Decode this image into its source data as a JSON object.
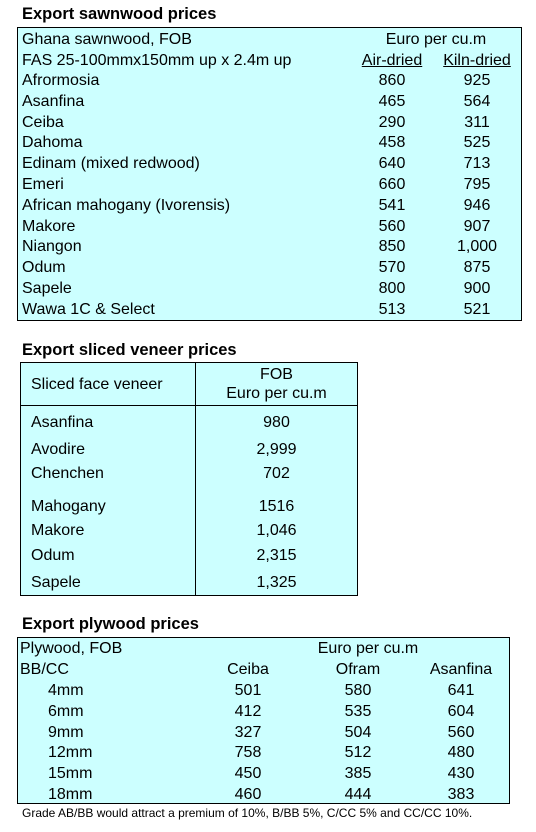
{
  "sawnwood": {
    "title": "Export sawnwood prices",
    "header1": "Ghana sawnwood, FOB",
    "currency": "Euro per cu.m",
    "header2": "FAS 25-100mmx150mm up x 2.4m up",
    "col_air": "Air-dried",
    "col_kiln": "Kiln-dried",
    "rows": [
      {
        "name": "Afrormosia",
        "air": "860",
        "kiln": "925"
      },
      {
        "name": "Asanfina",
        "air": "465",
        "kiln": "564"
      },
      {
        "name": "Ceiba",
        "air": "290",
        "kiln": "311"
      },
      {
        "name": "Dahoma",
        "air": "458",
        "kiln": "525"
      },
      {
        "name": "Edinam (mixed redwood)",
        "air": "640",
        "kiln": "713"
      },
      {
        "name": "Emeri",
        "air": "660",
        "kiln": "795"
      },
      {
        "name": "African mahogany (Ivorensis)",
        "air": "541",
        "kiln": "946"
      },
      {
        "name": "Makore",
        "air": "560",
        "kiln": "907"
      },
      {
        "name": "Niangon",
        "air": "850",
        "kiln": "1,000"
      },
      {
        "name": "Odum",
        "air": "570",
        "kiln": "875"
      },
      {
        "name": "Sapele",
        "air": "800",
        "kiln": "900"
      },
      {
        "name": "Wawa 1C & Select",
        "air": "513",
        "kiln": "521"
      }
    ]
  },
  "veneer": {
    "title": "Export  sliced veneer  prices",
    "col_name": "Sliced face veneer",
    "col_fob": "FOB",
    "col_unit": "Euro per cu.m",
    "rows": [
      {
        "name": "Asanfina",
        "value": "980"
      },
      {
        "name": "Avodire",
        "value": "2,999"
      },
      {
        "name": "Chenchen",
        "value": "702"
      },
      {
        "name": "Mahogany",
        "value": "1516"
      },
      {
        "name": "Makore",
        "value": "1,046"
      },
      {
        "name": "Odum",
        "value": "2,315"
      },
      {
        "name": "Sapele",
        "value": "1,325"
      }
    ]
  },
  "plywood": {
    "title": "Export plywood prices",
    "header1": "Plywood, FOB",
    "currency": "Euro per cu.m",
    "grade": "BB/CC",
    "col_ceiba": "Ceiba",
    "col_ofram": "Ofram",
    "col_asanfina": "Asanfina",
    "rows": [
      {
        "size": "4mm",
        "ceiba": "501",
        "ofram": "580",
        "asanfina": "641"
      },
      {
        "size": "6mm",
        "ceiba": "412",
        "ofram": "535",
        "asanfina": "604"
      },
      {
        "size": "9mm",
        "ceiba": "327",
        "ofram": "504",
        "asanfina": "560"
      },
      {
        "size": "12mm",
        "ceiba": "758",
        "ofram": "512",
        "asanfina": "480"
      },
      {
        "size": "15mm",
        "ceiba": "450",
        "ofram": "385",
        "asanfina": "430"
      },
      {
        "size": "18mm",
        "ceiba": "460",
        "ofram": "444",
        "asanfina": "383"
      }
    ],
    "note": "Grade AB/BB would attract a premium of 10%, B/BB 5%, C/CC 5% and CC/CC 10%."
  }
}
